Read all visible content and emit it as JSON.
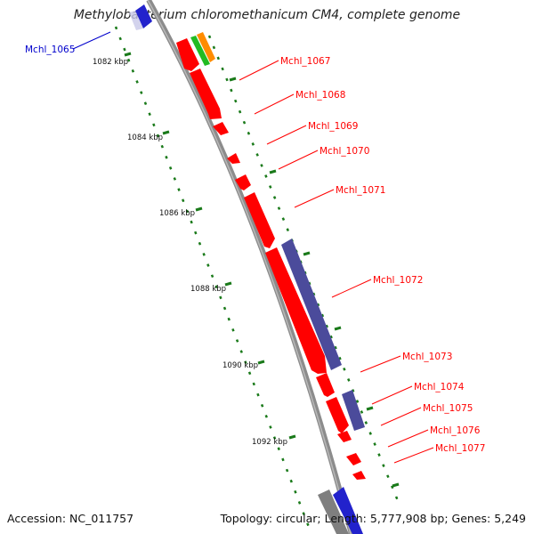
{
  "title": "Methylobacterium chloromethanicum CM4, complete genome",
  "footer": {
    "accession": "Accession: NC_011757",
    "topology": "Topology: circular; Length: 5,777,908 bp; Genes: 5,249"
  },
  "colors": {
    "forward_gene": "#ff0000",
    "reverse_gene": "#0000ff",
    "feature_purple": "#4b4b9b",
    "feature_green": "#22bb22",
    "feature_orange": "#ff8c00",
    "feature_gray": "#7f7f7f",
    "backbone": "#8c8c8c",
    "tick_dots": "#1a7a1a",
    "forward_label": "#ff0000",
    "reverse_label": "#0000cc"
  },
  "scale_labels": [
    "1082 kbp",
    "1084 kbp",
    "1086 kbp",
    "1088 kbp",
    "1090 kbp",
    "1092 kbp"
  ],
  "gene_labels": [
    {
      "text": "Mchl_1065",
      "strand": "reverse"
    },
    {
      "text": "Mchl_1067",
      "strand": "forward"
    },
    {
      "text": "Mchl_1068",
      "strand": "forward"
    },
    {
      "text": "Mchl_1069",
      "strand": "forward"
    },
    {
      "text": "Mchl_1070",
      "strand": "forward"
    },
    {
      "text": "Mchl_1071",
      "strand": "forward"
    },
    {
      "text": "Mchl_1072",
      "strand": "forward"
    },
    {
      "text": "Mchl_1073",
      "strand": "forward"
    },
    {
      "text": "Mchl_1074",
      "strand": "forward"
    },
    {
      "text": "Mchl_1075",
      "strand": "forward"
    },
    {
      "text": "Mchl_1076",
      "strand": "forward"
    },
    {
      "text": "Mchl_1077",
      "strand": "forward"
    }
  ]
}
